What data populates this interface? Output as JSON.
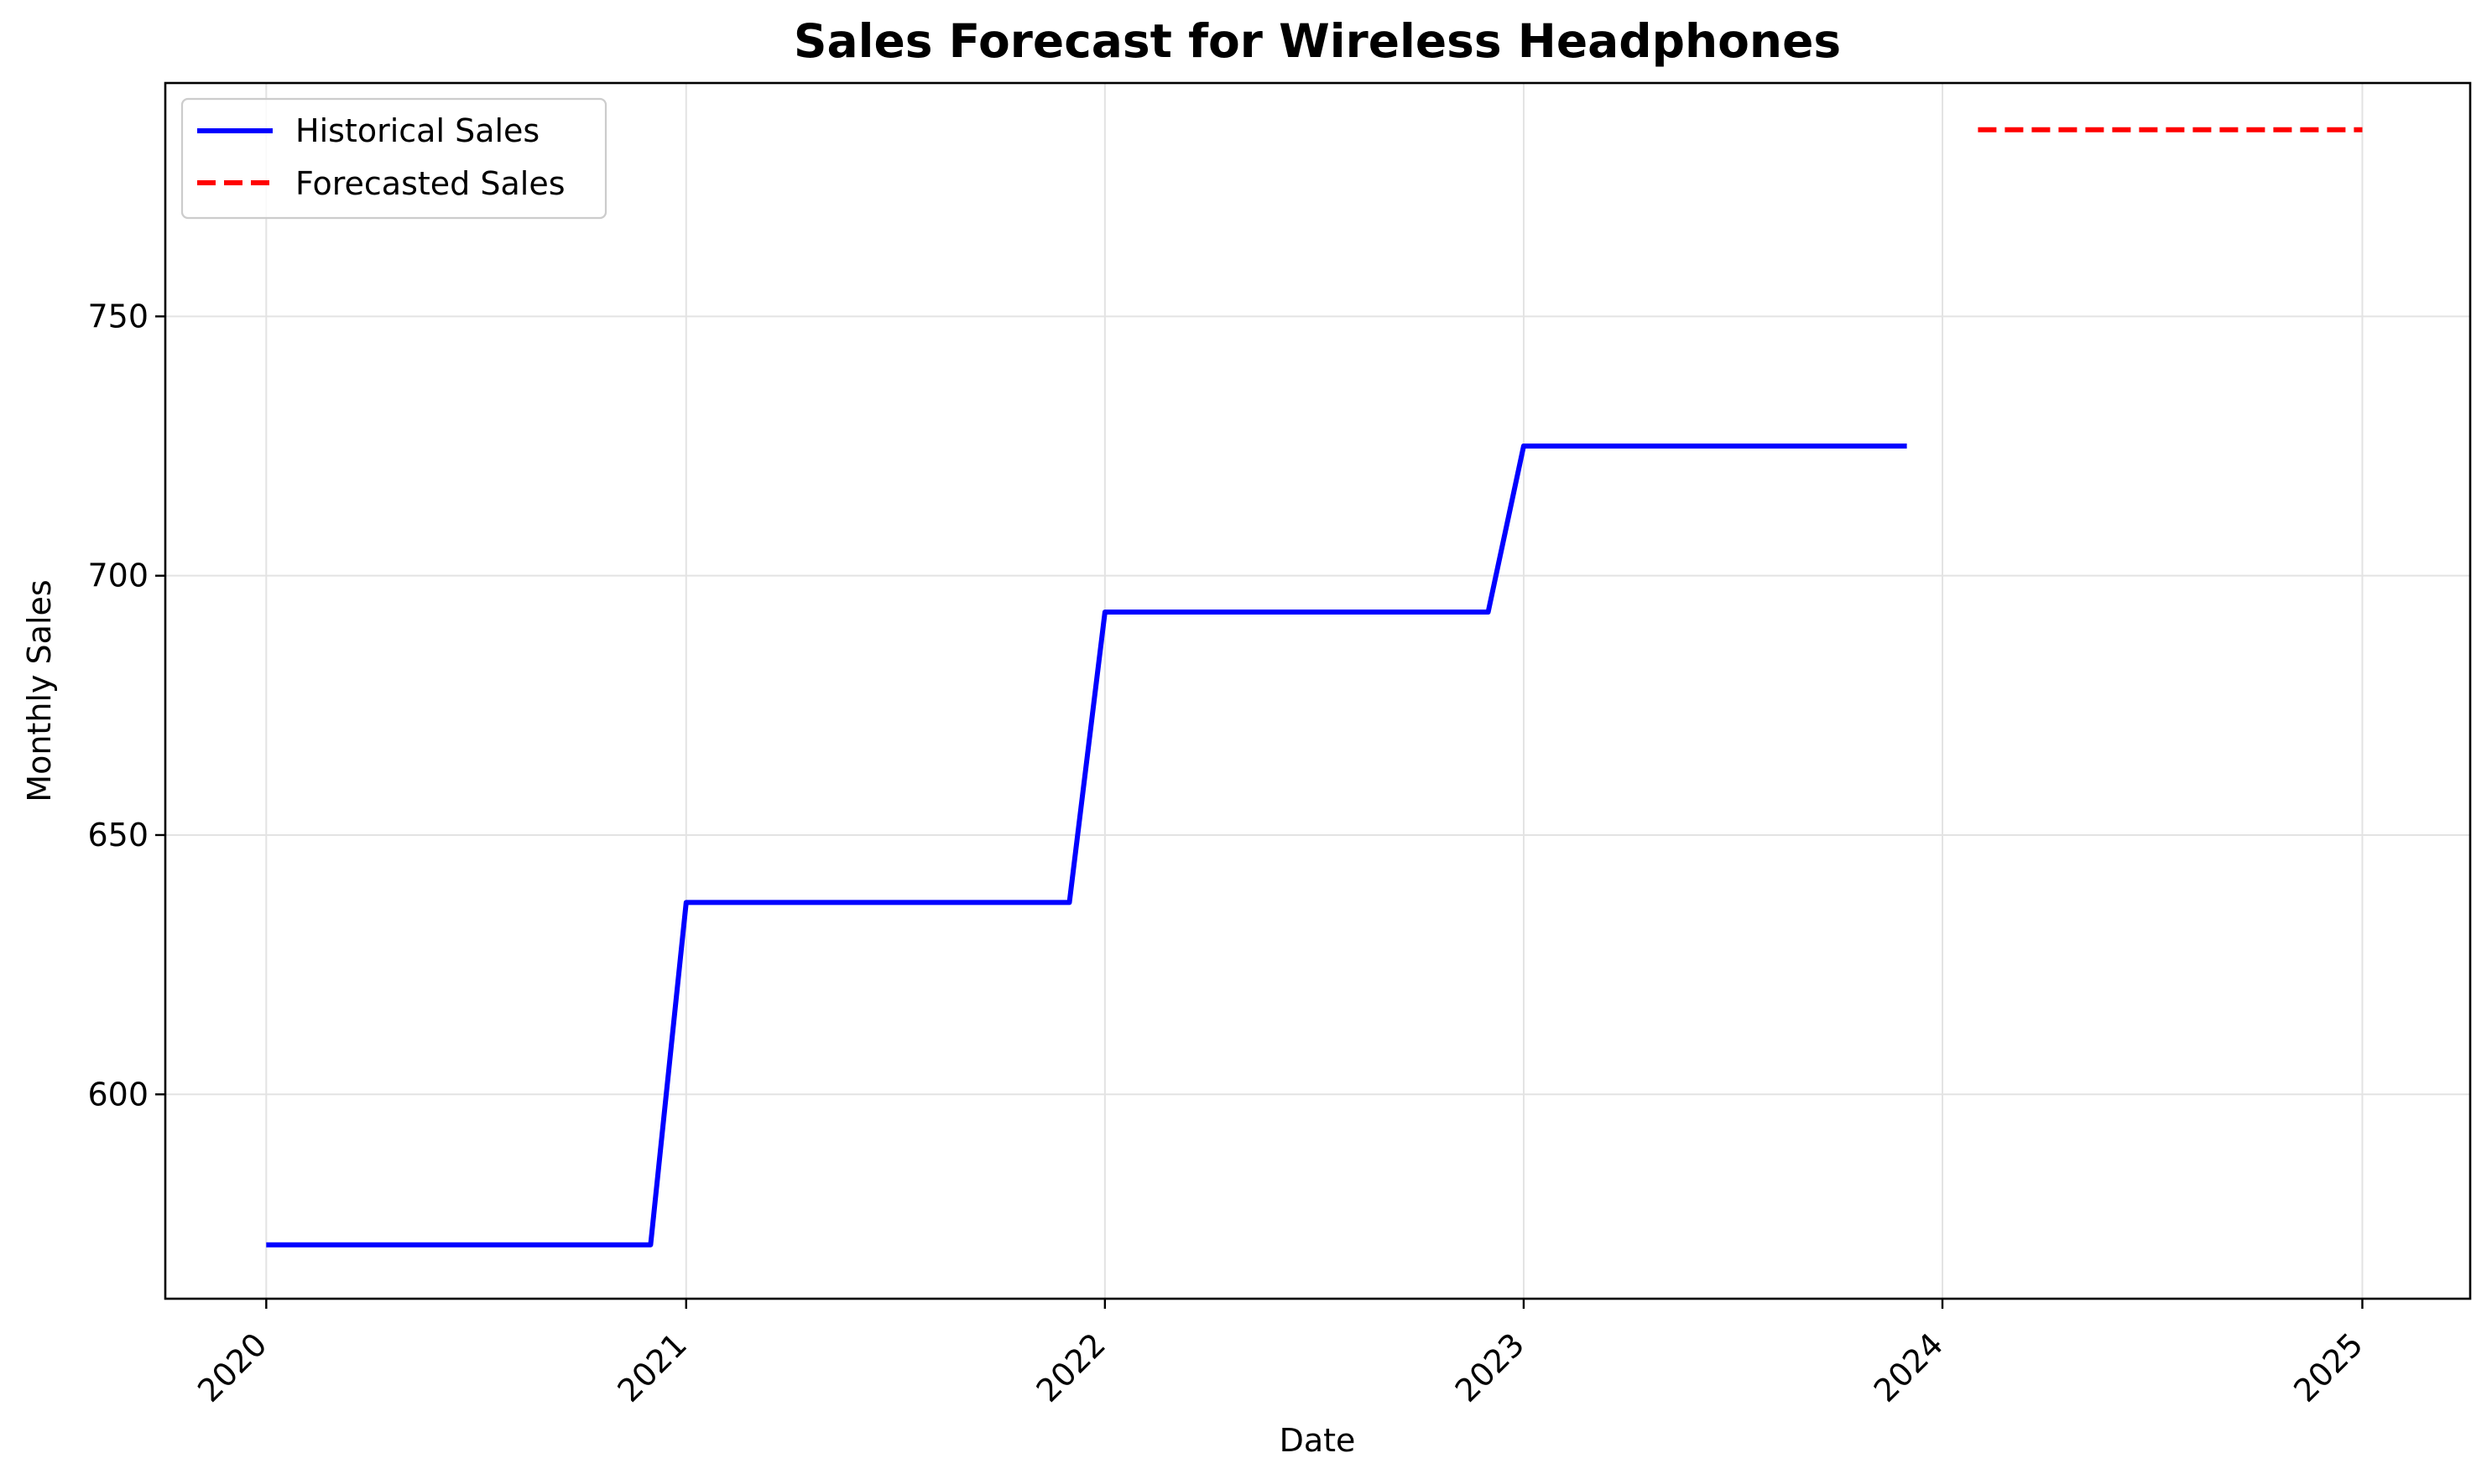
{
  "chart_data": {
    "type": "line",
    "title": "Sales Forecast for Wireless Headphones",
    "xlabel": "Date",
    "ylabel": "Monthly Sales",
    "x_ticks": [
      "2020",
      "2021",
      "2022",
      "2023",
      "2024",
      "2025"
    ],
    "y_ticks": [
      600,
      650,
      700,
      750
    ],
    "xlim": [
      "2019-10-05",
      "2025-04-05"
    ],
    "ylim": [
      560.6,
      795.0
    ],
    "grid": true,
    "legend_position": "top-left",
    "series": [
      {
        "name": "Historical Sales",
        "color": "#0000ff",
        "style": "solid",
        "x": [
          "2020-01-01",
          "2020-12-01",
          "2021-01-01",
          "2021-12-01",
          "2022-01-01",
          "2022-12-01",
          "2023-01-01",
          "2023-12-01"
        ],
        "y": [
          571,
          571,
          637,
          637,
          693,
          693,
          725,
          725
        ]
      },
      {
        "name": "Forecasted Sales",
        "color": "#ff0000",
        "style": "dashed",
        "x": [
          "2024-02-01",
          "2025-01-01"
        ],
        "y": [
          786,
          786
        ]
      }
    ]
  }
}
